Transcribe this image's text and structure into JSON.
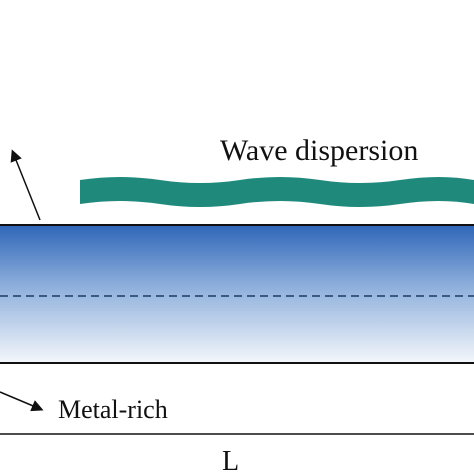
{
  "labels": {
    "wave": "Wave dispersion",
    "metal": "Metal-rich",
    "length": "L"
  }
}
